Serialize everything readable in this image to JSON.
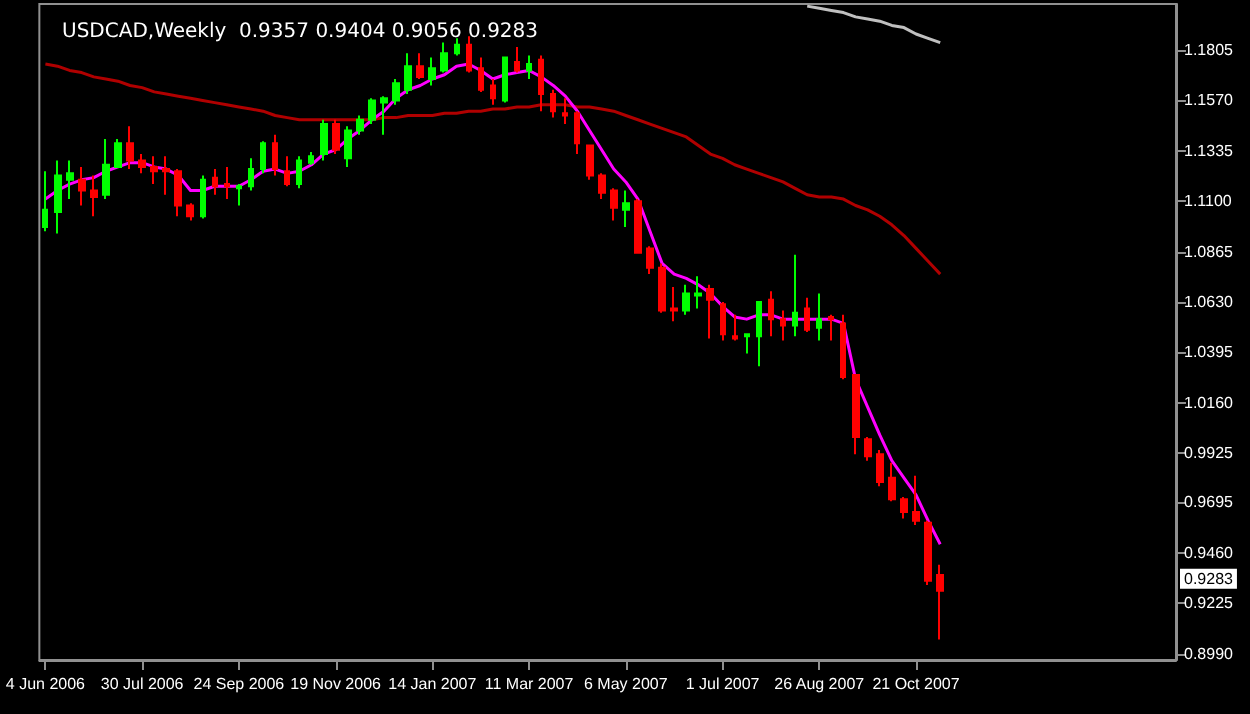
{
  "chart_data": {
    "type": "candlestick",
    "title": "USDCAD,Weekly  0.9357 0.9404 0.9056 0.9283",
    "categories": [
      "4 Jun 2006",
      null,
      null,
      null,
      null,
      null,
      null,
      null,
      "30 Jul 2006",
      null,
      null,
      null,
      null,
      null,
      null,
      null,
      "24 Sep 2006",
      null,
      null,
      null,
      null,
      null,
      null,
      null,
      "19 Nov 2006",
      null,
      null,
      null,
      null,
      null,
      null,
      null,
      "14 Jan 2007",
      null,
      null,
      null,
      null,
      null,
      null,
      null,
      "11 Mar 2007",
      null,
      null,
      null,
      null,
      null,
      null,
      null,
      "6 May 2007",
      null,
      null,
      null,
      null,
      null,
      null,
      null,
      "1 Jul 2007",
      null,
      null,
      null,
      null,
      null,
      null,
      null,
      "26 Aug 2007",
      null,
      null,
      null,
      null,
      null,
      null,
      null,
      "21 Oct 2007",
      null,
      null
    ],
    "ohlc": [
      [
        1.098,
        1.124,
        1.096,
        1.106
      ],
      [
        1.105,
        1.129,
        1.095,
        1.122
      ],
      [
        1.12,
        1.129,
        1.111,
        1.123
      ],
      [
        1.12,
        1.126,
        1.108,
        1.115
      ],
      [
        1.115,
        1.122,
        1.103,
        1.112
      ],
      [
        1.113,
        1.139,
        1.111,
        1.127
      ],
      [
        1.126,
        1.139,
        1.126,
        1.137
      ],
      [
        1.137,
        1.145,
        1.125,
        1.129
      ],
      [
        1.129,
        1.132,
        1.123,
        1.126
      ],
      [
        1.126,
        1.131,
        1.118,
        1.124
      ],
      [
        1.125,
        1.131,
        1.113,
        1.124
      ],
      [
        1.124,
        1.125,
        1.103,
        1.108
      ],
      [
        1.108,
        1.109,
        1.101,
        1.103
      ],
      [
        1.103,
        1.122,
        1.102,
        1.12
      ],
      [
        1.121,
        1.125,
        1.113,
        1.117
      ],
      [
        1.118,
        1.126,
        1.111,
        1.117
      ],
      [
        1.116,
        1.118,
        1.108,
        1.117
      ],
      [
        1.117,
        1.13,
        1.115,
        1.125
      ],
      [
        1.125,
        1.138,
        1.123,
        1.137
      ],
      [
        1.137,
        1.141,
        1.122,
        1.125
      ],
      [
        1.124,
        1.131,
        1.117,
        1.118
      ],
      [
        1.118,
        1.131,
        1.116,
        1.129
      ],
      [
        1.128,
        1.133,
        1.127,
        1.131
      ],
      [
        1.132,
        1.148,
        1.129,
        1.146
      ],
      [
        1.146,
        1.148,
        1.132,
        1.134
      ],
      [
        1.13,
        1.145,
        1.126,
        1.143
      ],
      [
        1.143,
        1.15,
        1.141,
        1.148
      ],
      [
        1.148,
        1.158,
        1.146,
        1.157
      ],
      [
        1.156,
        1.159,
        1.141,
        1.158
      ],
      [
        1.157,
        1.167,
        1.155,
        1.165
      ],
      [
        1.162,
        1.179,
        1.16,
        1.173
      ],
      [
        1.173,
        1.179,
        1.167,
        1.168
      ],
      [
        1.167,
        1.177,
        1.164,
        1.172
      ],
      [
        1.171,
        1.184,
        1.17,
        1.179
      ],
      [
        1.179,
        1.186,
        1.178,
        1.183
      ],
      [
        1.183,
        1.187,
        1.17,
        1.171
      ],
      [
        1.172,
        1.177,
        1.161,
        1.162
      ],
      [
        1.164,
        1.167,
        1.155,
        1.158
      ],
      [
        1.157,
        1.177,
        1.156,
        1.177
      ],
      [
        1.175,
        1.182,
        1.17,
        1.171
      ],
      [
        1.171,
        1.178,
        1.167,
        1.174
      ],
      [
        1.176,
        1.178,
        1.152,
        1.16
      ],
      [
        1.16,
        1.162,
        1.149,
        1.152
      ],
      [
        1.151,
        1.158,
        1.146,
        1.15
      ],
      [
        1.151,
        1.152,
        1.132,
        1.137
      ],
      [
        1.136,
        1.136,
        1.12,
        1.122
      ],
      [
        1.122,
        1.123,
        1.111,
        1.114
      ],
      [
        1.115,
        1.116,
        1.101,
        1.107
      ],
      [
        1.106,
        1.115,
        1.098,
        1.109
      ],
      [
        1.11,
        1.111,
        1.086,
        1.086
      ],
      [
        1.088,
        1.089,
        1.076,
        1.079
      ],
      [
        1.079,
        1.081,
        1.058,
        1.059
      ],
      [
        1.06,
        1.07,
        1.054,
        1.059
      ],
      [
        1.059,
        1.071,
        1.057,
        1.067
      ],
      [
        1.066,
        1.075,
        1.06,
        1.067
      ],
      [
        1.069,
        1.071,
        1.046,
        1.064
      ],
      [
        1.062,
        1.063,
        1.045,
        1.048
      ],
      [
        1.047,
        1.057,
        1.045,
        1.046
      ],
      [
        1.047,
        1.048,
        1.039,
        1.048
      ],
      [
        1.047,
        1.063,
        1.033,
        1.063
      ],
      [
        1.064,
        1.068,
        1.047,
        1.055
      ],
      [
        1.055,
        1.059,
        1.045,
        1.052
      ],
      [
        1.052,
        1.085,
        1.047,
        1.058
      ],
      [
        1.06,
        1.065,
        1.049,
        1.05
      ],
      [
        1.051,
        1.067,
        1.045,
        1.055
      ],
      [
        1.056,
        1.057,
        1.045,
        1.055
      ],
      [
        1.053,
        1.057,
        1.027,
        1.028
      ],
      [
        1.029,
        1.029,
        0.992,
        1.0
      ],
      [
        0.999,
        1.0,
        0.989,
        0.991
      ],
      [
        0.992,
        0.994,
        0.977,
        0.979
      ],
      [
        0.981,
        0.988,
        0.97,
        0.971
      ],
      [
        0.971,
        0.972,
        0.962,
        0.965
      ],
      [
        0.965,
        0.982,
        0.959,
        0.961
      ],
      [
        0.96,
        0.961,
        0.931,
        0.933
      ],
      [
        0.9357,
        0.9404,
        0.9056,
        0.9283
      ]
    ],
    "colors": [
      "#00ff00",
      "#00ff00",
      "#00ff00",
      "#ff0000",
      "#ff0000",
      "#00ff00",
      "#00ff00",
      "#ff0000",
      "#ff0000",
      "#ff0000",
      "#ff0000",
      "#ff0000",
      "#ff0000",
      "#00ff00",
      "#ff0000",
      "#ff0000",
      "#00ff00",
      "#00ff00",
      "#00ff00",
      "#ff0000",
      "#ff0000",
      "#00ff00",
      "#00ff00",
      "#00ff00",
      "#ff0000",
      "#00ff00",
      "#00ff00",
      "#00ff00",
      "#00ff00",
      "#00ff00",
      "#00ff00",
      "#ff0000",
      "#00ff00",
      "#00ff00",
      "#00ff00",
      "#ff0000",
      "#ff0000",
      "#ff0000",
      "#00ff00",
      "#ff0000",
      "#00ff00",
      "#ff0000",
      "#ff0000",
      "#ff0000",
      "#ff0000",
      "#ff0000",
      "#ff0000",
      "#ff0000",
      "#00ff00",
      "#ff0000",
      "#ff0000",
      "#ff0000",
      "#ff0000",
      "#00ff00",
      "#00ff00",
      "#ff0000",
      "#ff0000",
      "#ff0000",
      "#00ff00",
      "#00ff00",
      "#ff0000",
      "#ff0000",
      "#00ff00",
      "#ff0000",
      "#00ff00",
      "#ff0000",
      "#ff0000",
      "#ff0000",
      "#ff0000",
      "#ff0000",
      "#ff0000",
      "#ff0000",
      "#ff0000",
      "#ff0000",
      "#ff0000"
    ],
    "series": [
      {
        "type": "line",
        "color": "#c0c0c0",
        "values": [
          null,
          null,
          null,
          null,
          null,
          null,
          null,
          null,
          null,
          null,
          null,
          null,
          null,
          null,
          null,
          null,
          null,
          null,
          null,
          null,
          null,
          null,
          null,
          null,
          null,
          null,
          null,
          null,
          null,
          null,
          null,
          null,
          null,
          null,
          null,
          null,
          null,
          null,
          null,
          null,
          null,
          null,
          null,
          null,
          null,
          null,
          null,
          null,
          null,
          null,
          null,
          null,
          null,
          null,
          null,
          null,
          null,
          null,
          null,
          null,
          null,
          null,
          null,
          1.201,
          1.2,
          1.199,
          1.198,
          1.196,
          1.195,
          1.194,
          1.192,
          1.191,
          1.188,
          1.186,
          1.184
        ]
      },
      {
        "type": "line",
        "color": "#b00000",
        "values": [
          1.174,
          1.173,
          1.171,
          1.17,
          1.168,
          1.167,
          1.166,
          1.164,
          1.163,
          1.161,
          1.16,
          1.159,
          1.158,
          1.157,
          1.156,
          1.155,
          1.154,
          1.153,
          1.152,
          1.15,
          1.149,
          1.148,
          1.148,
          1.148,
          1.148,
          1.148,
          1.148,
          1.148,
          1.149,
          1.149,
          1.15,
          1.15,
          1.15,
          1.151,
          1.151,
          1.152,
          1.152,
          1.153,
          1.153,
          1.154,
          1.154,
          1.155,
          1.155,
          1.155,
          1.154,
          1.154,
          1.153,
          1.152,
          1.15,
          1.148,
          1.146,
          1.144,
          1.142,
          1.14,
          1.136,
          1.132,
          1.13,
          1.127,
          1.125,
          1.123,
          1.121,
          1.119,
          1.116,
          1.113,
          1.112,
          1.112,
          1.111,
          1.108,
          1.106,
          1.103,
          1.099,
          1.094,
          1.088,
          1.082,
          1.076
        ]
      },
      {
        "type": "line",
        "color": "#ff00ff",
        "values": [
          1.111,
          1.115,
          1.118,
          1.12,
          1.121,
          1.124,
          1.126,
          1.128,
          1.128,
          1.126,
          1.125,
          1.122,
          1.115,
          1.115,
          1.117,
          1.117,
          1.117,
          1.12,
          1.124,
          1.125,
          1.123,
          1.124,
          1.127,
          1.132,
          1.134,
          1.139,
          1.143,
          1.148,
          1.152,
          1.158,
          1.162,
          1.164,
          1.167,
          1.169,
          1.173,
          1.174,
          1.171,
          1.167,
          1.169,
          1.17,
          1.171,
          1.168,
          1.164,
          1.159,
          1.152,
          1.143,
          1.134,
          1.125,
          1.119,
          1.111,
          1.096,
          1.081,
          1.076,
          1.074,
          1.071,
          1.067,
          1.061,
          1.056,
          1.055,
          1.057,
          1.057,
          1.055,
          1.055,
          1.055,
          1.055,
          1.055,
          1.053,
          1.027,
          1.014,
          1.001,
          0.989,
          0.981,
          0.973,
          0.961,
          0.95
        ]
      }
    ],
    "ylim": [
      0.896,
      1.202
    ],
    "yticks": [
      1.1805,
      {
        "value": 1.157,
        "label": "1.1570"
      },
      1.1335,
      {
        "value": 1.11,
        "label": "1.1100"
      },
      1.0865,
      {
        "value": 1.063,
        "label": "1.0630"
      },
      1.0395,
      {
        "value": 1.016,
        "label": "1.0160"
      },
      0.9925,
      0.9695,
      {
        "value": 0.946,
        "label": "0.9460"
      },
      0.9225,
      {
        "value": 0.899,
        "label": "0.8990"
      }
    ],
    "annotations": [
      "0.9283"
    ]
  }
}
